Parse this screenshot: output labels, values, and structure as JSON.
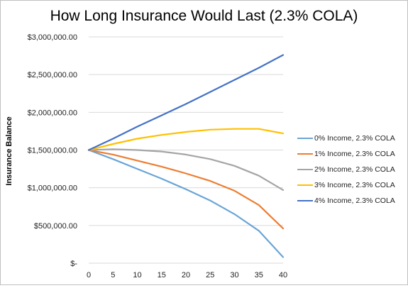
{
  "chart_data": {
    "type": "line",
    "title": "How Long Insurance Would Last (2.3% COLA)",
    "xlabel": "",
    "ylabel": "Insurance Balance",
    "xlim": [
      0,
      40
    ],
    "ylim": [
      0,
      3000000
    ],
    "x_ticks": [
      0,
      5,
      10,
      15,
      20,
      25,
      30,
      35,
      40
    ],
    "y_ticks": [
      {
        "value": 0,
        "label": "$-"
      },
      {
        "value": 500000,
        "label": "$500,000.00"
      },
      {
        "value": 1000000,
        "label": "$1,000,000.00"
      },
      {
        "value": 1500000,
        "label": "$1,500,000.00"
      },
      {
        "value": 2000000,
        "label": "$2,000,000.00"
      },
      {
        "value": 2500000,
        "label": "$2,500,000.00"
      },
      {
        "value": 3000000,
        "label": "$3,000,000.00"
      }
    ],
    "grid": {
      "horizontal": true,
      "vertical": false
    },
    "legend_position": "right",
    "x": [
      0,
      5,
      10,
      15,
      20,
      25,
      30,
      35,
      40
    ],
    "series": [
      {
        "name": "0% Income, 2.3% COLA",
        "color": "#6aa5d6",
        "values": [
          1500000,
          1380000,
          1250000,
          1120000,
          980000,
          830000,
          650000,
          430000,
          80000
        ]
      },
      {
        "name": "1% Income, 2.3% COLA",
        "color": "#ed7d31",
        "values": [
          1500000,
          1440000,
          1360000,
          1280000,
          1190000,
          1090000,
          960000,
          770000,
          460000
        ]
      },
      {
        "name": "2% Income, 2.3% COLA",
        "color": "#a5a5a5",
        "values": [
          1500000,
          1510000,
          1500000,
          1480000,
          1440000,
          1380000,
          1290000,
          1160000,
          970000
        ]
      },
      {
        "name": "3% Income, 2.3% COLA",
        "color": "#ffc000",
        "values": [
          1500000,
          1580000,
          1650000,
          1700000,
          1740000,
          1770000,
          1780000,
          1780000,
          1720000
        ]
      },
      {
        "name": "4% Income, 2.3% COLA",
        "color": "#4472c4",
        "values": [
          1500000,
          1650000,
          1810000,
          1960000,
          2110000,
          2270000,
          2430000,
          2590000,
          2760000
        ]
      }
    ]
  }
}
